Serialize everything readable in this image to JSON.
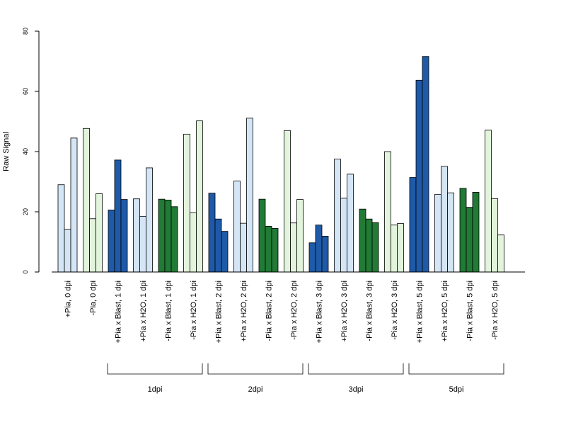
{
  "chart_data": {
    "type": "bar",
    "ylabel": "Raw Signal",
    "xlabel": "",
    "title": "",
    "ylim": [
      0,
      80
    ],
    "yticks": [
      0,
      20,
      40,
      60,
      80
    ],
    "grid": false,
    "categories": [
      "+Pia, 0 dpi",
      "-Pia, 0 dpi",
      "+Pia x Blast, 1 dpi",
      "+Pia x H2O, 1 dpi",
      "-Pia x Blast, 1 dpi",
      "-Pia x H2O, 1 dpi",
      "+Pia x Blast, 2 dpi",
      "+Pia x H2O, 2 dpi",
      "-Pia x Blast, 2 dpi",
      "-Pia x H2O, 2 dpi",
      "+Pia x Blast, 3 dpi",
      "+Pia x H2O, 3 dpi",
      "-Pia x Blast, 3 dpi",
      "-Pia x H2O, 3 dpi",
      "+Pia x Blast, 5 dpi",
      "+Pia x H2O, 5 dpi",
      "-Pia x Blast, 5 dpi",
      "-Pia x H2O, 5 dpi"
    ],
    "colors": [
      "#d4e5f5",
      "#e2f5dc",
      "#1e5aa8",
      "#d4e5f5",
      "#217a35",
      "#e2f5dc",
      "#1e5aa8",
      "#d4e5f5",
      "#217a35",
      "#e2f5dc",
      "#1e5aa8",
      "#d4e5f5",
      "#217a35",
      "#e2f5dc",
      "#1e5aa8",
      "#d4e5f5",
      "#217a35",
      "#e2f5dc"
    ],
    "replicates": [
      [
        29.0,
        14.2,
        44.5
      ],
      [
        47.7,
        17.7,
        26.0
      ],
      [
        20.6,
        37.2,
        24.1
      ],
      [
        24.3,
        18.5,
        34.6
      ],
      [
        24.2,
        23.9,
        21.7
      ],
      [
        45.8,
        19.7,
        50.2
      ],
      [
        26.2,
        17.6,
        13.5
      ],
      [
        30.2,
        16.2,
        51.1
      ],
      [
        24.2,
        15.2,
        14.5
      ],
      [
        47.0,
        16.3,
        24.1
      ],
      [
        9.7,
        15.6,
        11.9
      ],
      [
        37.5,
        24.5,
        32.5
      ],
      [
        20.9,
        17.6,
        16.4
      ],
      [
        40.0,
        15.6,
        16.1
      ],
      [
        31.4,
        63.7,
        71.6
      ],
      [
        25.8,
        35.1,
        26.3
      ],
      [
        27.8,
        21.5,
        26.5
      ],
      [
        47.1,
        24.4,
        12.3
      ]
    ],
    "groups": [
      {
        "label": "1dpi",
        "from": 2,
        "to": 5
      },
      {
        "label": "2dpi",
        "from": 6,
        "to": 9
      },
      {
        "label": "3dpi",
        "from": 10,
        "to": 13
      },
      {
        "label": "5dpi",
        "from": 14,
        "to": 17
      }
    ]
  }
}
